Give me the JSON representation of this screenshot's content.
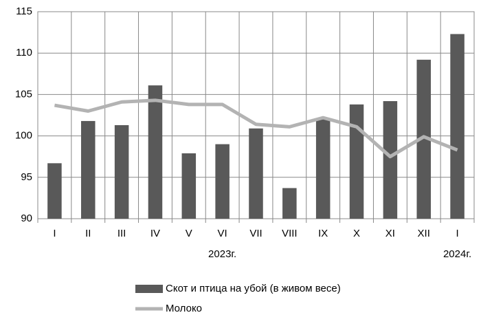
{
  "chart_data": {
    "type": "combo",
    "categories": [
      "I",
      "II",
      "III",
      "IV",
      "V",
      "VI",
      "VII",
      "VIII",
      "IX",
      "X",
      "XI",
      "XII",
      "I"
    ],
    "year_labels": [
      null,
      null,
      null,
      null,
      null,
      "2023г.",
      null,
      null,
      null,
      null,
      null,
      null,
      "2024г."
    ],
    "series": [
      {
        "name": "Скот и птица на убой (в живом весе)",
        "type": "bar",
        "color": "#595959",
        "values": [
          96.7,
          101.8,
          101.3,
          106.1,
          97.9,
          99.0,
          100.9,
          93.7,
          102.0,
          103.8,
          104.2,
          109.2,
          112.3
        ]
      },
      {
        "name": "Молоко",
        "type": "line",
        "color": "#b3b3b3",
        "values": [
          103.7,
          103.0,
          104.1,
          104.3,
          103.8,
          103.8,
          101.4,
          101.1,
          102.2,
          101.1,
          97.5,
          99.9,
          98.3
        ]
      }
    ],
    "ylim": [
      90,
      115
    ],
    "yticks": [
      90,
      95,
      100,
      105,
      110,
      115
    ],
    "grid": true,
    "legend": "bottom"
  }
}
